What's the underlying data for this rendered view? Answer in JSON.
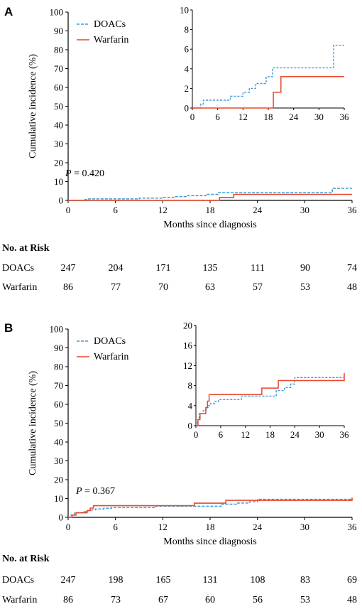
{
  "colors": {
    "doacs": "#3d9bd6",
    "warfarin": "#e8482c",
    "axis": "#000000"
  },
  "chart_data": [
    {
      "type": "line",
      "panel_label": "A",
      "xlabel": "Months since diagnosis",
      "ylabel": "Cumulative incidence (%)",
      "xlim": [
        0,
        36
      ],
      "ylim": [
        0,
        100
      ],
      "xticks": [
        0,
        6,
        12,
        18,
        24,
        30,
        36
      ],
      "yticks": [
        0,
        10,
        20,
        30,
        40,
        50,
        60,
        70,
        80,
        90,
        100
      ],
      "p_prefix": "P",
      "p_value": " = 0.420",
      "legend": [
        "DOACs",
        "Warfarin"
      ],
      "legend_position": "top-left",
      "series": [
        {
          "name": "DOACs",
          "style": "dashed",
          "x": [
            0,
            2,
            2.6,
            9,
            12,
            13.5,
            15,
            17.5,
            19,
            33,
            33.5,
            36
          ],
          "y": [
            0,
            0.4,
            0.8,
            1.2,
            1.6,
            2.0,
            2.5,
            3.2,
            4.1,
            4.1,
            6.4,
            6.4
          ]
        },
        {
          "name": "Warfarin",
          "style": "solid",
          "x": [
            0,
            19.2,
            21,
            36
          ],
          "y": [
            0,
            1.6,
            3.2,
            3.2
          ]
        }
      ],
      "inset": {
        "xlim": [
          0,
          36
        ],
        "ylim": [
          0,
          10
        ],
        "xticks": [
          0,
          6,
          12,
          18,
          24,
          30,
          36
        ],
        "yticks": [
          0,
          2,
          4,
          6,
          8,
          10
        ]
      },
      "risk_table": {
        "title": "No. at Risk",
        "rows": [
          {
            "label": "DOACs",
            "values": [
              "247",
              "204",
              "171",
              "135",
              "111",
              "90",
              "74"
            ]
          },
          {
            "label": "Warfarin",
            "values": [
              "86",
              "77",
              "70",
              "63",
              "57",
              "53",
              "48"
            ]
          }
        ]
      }
    },
    {
      "type": "line",
      "panel_label": "B",
      "xlabel": "Months since diagnosis",
      "ylabel": "Cumulative incidence (%)",
      "xlim": [
        0,
        36
      ],
      "ylim": [
        0,
        100
      ],
      "xticks": [
        0,
        6,
        12,
        18,
        24,
        30,
        36
      ],
      "yticks": [
        0,
        10,
        20,
        30,
        40,
        50,
        60,
        70,
        80,
        90,
        100
      ],
      "p_prefix": "P",
      "p_value": " = 0.367",
      "legend": [
        "DOACs",
        "Warfarin"
      ],
      "legend_position": "top-left",
      "series": [
        {
          "name": "DOACs",
          "style": "dashed",
          "x": [
            0,
            0.4,
            0.8,
            1.8,
            2.5,
            3,
            3.5,
            4.5,
            5.5,
            10,
            11,
            17.5,
            19.5,
            21.5,
            23,
            24,
            36
          ],
          "y": [
            0,
            1.2,
            2.4,
            3.0,
            3.6,
            4.0,
            4.4,
            4.8,
            5.2,
            5.2,
            5.9,
            5.9,
            7.0,
            7.6,
            8.3,
            9.6,
            9.6
          ]
        },
        {
          "name": "Warfarin",
          "style": "solid",
          "x": [
            0,
            0.5,
            1,
            2,
            2.4,
            2.8,
            3.2,
            10,
            16,
            20,
            36
          ],
          "y": [
            0,
            1.2,
            2.4,
            2.4,
            3.6,
            4.9,
            6.2,
            6.2,
            7.5,
            9.0,
            10.5
          ]
        }
      ],
      "inset": {
        "xlim": [
          0,
          36
        ],
        "ylim": [
          0,
          20
        ],
        "xticks": [
          0,
          6,
          12,
          18,
          24,
          30,
          36
        ],
        "yticks": [
          0,
          4,
          8,
          12,
          16,
          20
        ]
      },
      "risk_table": {
        "title": "No. at Risk",
        "rows": [
          {
            "label": "DOACs",
            "values": [
              "247",
              "198",
              "165",
              "131",
              "108",
              "83",
              "69"
            ]
          },
          {
            "label": "Warfarin",
            "values": [
              "86",
              "73",
              "67",
              "60",
              "56",
              "53",
              "48"
            ]
          }
        ]
      }
    }
  ]
}
